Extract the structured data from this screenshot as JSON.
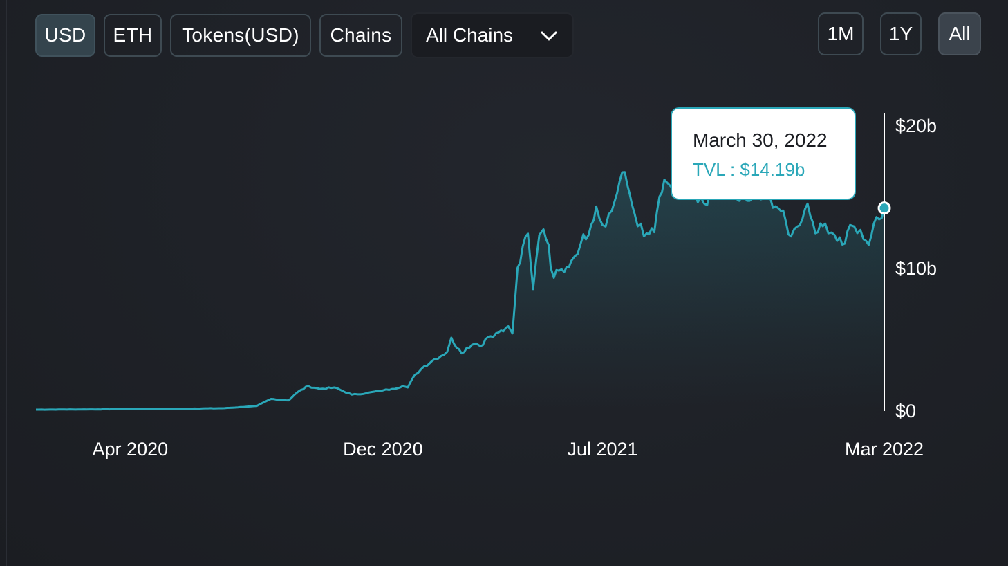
{
  "denomination_buttons": [
    {
      "label": "USD",
      "active": true
    },
    {
      "label": "ETH",
      "active": false
    },
    {
      "label": "Tokens(USD)",
      "active": false
    },
    {
      "label": "Chains",
      "active": false
    }
  ],
  "chain_select": {
    "value": "All Chains",
    "icon": "chevron-down-icon"
  },
  "range_buttons": [
    {
      "label": "1M",
      "active": false
    },
    {
      "label": "1Y",
      "active": false
    },
    {
      "label": "All",
      "active": true
    }
  ],
  "tooltip": {
    "date": "March 30, 2022",
    "value_text": "TVL : $14.19b"
  },
  "colors": {
    "line": "#2aa7b8",
    "background": "#1d1f25",
    "active_button": "#34444d"
  },
  "chart_data": {
    "type": "area",
    "title": "",
    "xlabel": "",
    "ylabel": "",
    "y_axis_side": "right",
    "ylim": [
      0,
      20
    ],
    "xlim": [
      "2020-01-01",
      "2022-03-30"
    ],
    "y_ticks": [
      "$0",
      "$10b",
      "$20b"
    ],
    "y_tick_values": [
      0,
      10,
      20
    ],
    "x_ticks": [
      "Apr 2020",
      "Dec 2020",
      "Jul 2021",
      "Mar 2022"
    ],
    "x_tick_dates": [
      "2020-04-01",
      "2020-12-01",
      "2021-07-01",
      "2022-03-30"
    ],
    "series": [
      {
        "x": [
          "2020-01-01",
          "2020-03-01",
          "2020-05-01",
          "2020-07-01",
          "2020-08-01",
          "2020-08-15",
          "2020-09-01",
          "2020-09-10",
          "2020-09-20",
          "2020-10-01",
          "2020-10-15",
          "2020-11-01",
          "2020-11-15",
          "2020-12-01",
          "2020-12-10",
          "2020-12-20",
          "2020-12-25",
          "2021-01-01",
          "2021-01-10",
          "2021-01-20",
          "2021-02-01",
          "2021-02-05",
          "2021-02-10",
          "2021-02-15",
          "2021-02-20",
          "2021-02-25",
          "2021-03-01",
          "2021-03-05",
          "2021-03-10",
          "2021-03-15",
          "2021-03-20",
          "2021-03-25",
          "2021-04-01",
          "2021-04-05",
          "2021-04-10",
          "2021-04-15",
          "2021-04-20",
          "2021-04-25",
          "2021-05-01",
          "2021-05-05",
          "2021-05-10",
          "2021-05-12",
          "2021-05-15",
          "2021-05-20",
          "2021-05-25",
          "2021-06-01",
          "2021-06-10",
          "2021-06-20",
          "2021-06-25",
          "2021-07-01",
          "2021-07-10",
          "2021-07-20",
          "2021-07-25",
          "2021-08-01",
          "2021-08-10",
          "2021-08-20",
          "2021-08-25",
          "2021-09-01",
          "2021-09-05",
          "2021-09-10",
          "2021-09-15",
          "2021-09-20",
          "2021-09-25",
          "2021-10-01",
          "2021-10-10",
          "2021-10-20",
          "2021-10-30",
          "2021-11-10",
          "2021-11-20",
          "2021-11-25",
          "2021-12-01",
          "2021-12-05",
          "2021-12-10",
          "2021-12-20",
          "2021-12-30",
          "2022-01-05",
          "2022-01-15",
          "2022-01-20",
          "2022-01-25",
          "2022-02-01",
          "2022-02-10",
          "2022-02-20",
          "2022-02-25",
          "2022-03-01",
          "2022-03-10",
          "2022-03-15",
          "2022-03-20",
          "2022-03-25",
          "2022-03-30"
        ],
        "y": [
          0.05,
          0.07,
          0.1,
          0.15,
          0.3,
          0.8,
          0.7,
          1.3,
          1.7,
          1.5,
          1.6,
          1.1,
          1.2,
          1.4,
          1.5,
          1.7,
          1.6,
          2.5,
          3.1,
          3.6,
          4.1,
          5.1,
          4.4,
          4.0,
          4.4,
          4.6,
          4.7,
          4.5,
          5.0,
          5.2,
          5.4,
          5.6,
          5.9,
          5.4,
          10.0,
          11.5,
          12.4,
          8.5,
          12.3,
          12.7,
          11.6,
          10.0,
          9.3,
          9.8,
          9.7,
          10.5,
          11.7,
          13.0,
          14.3,
          13.0,
          14.0,
          16.7,
          15.8,
          13.8,
          12.2,
          12.5,
          15.0,
          16.0,
          15.7,
          15.1,
          15.5,
          14.9,
          15.3,
          14.6,
          14.4,
          15.8,
          15.7,
          14.7,
          14.7,
          15.1,
          14.8,
          14.9,
          14.9,
          14.0,
          12.2,
          12.9,
          14.5,
          13.2,
          12.5,
          13.1,
          12.3,
          11.7,
          13.0,
          12.9,
          12.0,
          11.6,
          13.1,
          13.4,
          14.19
        ]
      }
    ],
    "highlight_point": {
      "x": "2022-03-30",
      "y": 14.19
    }
  }
}
